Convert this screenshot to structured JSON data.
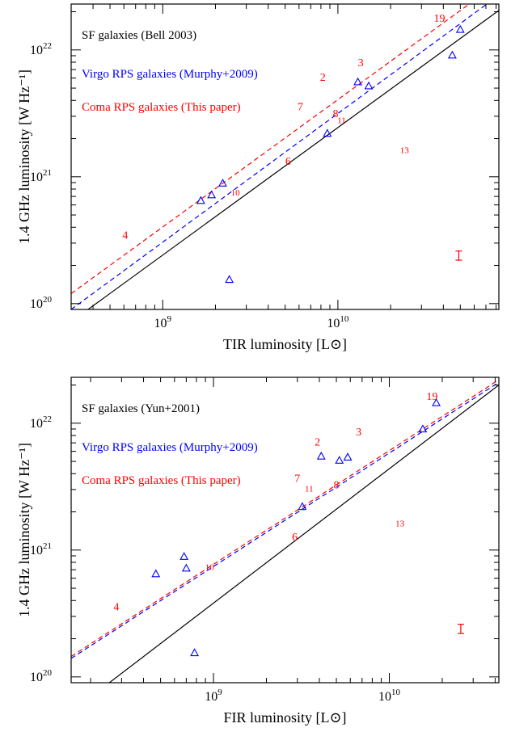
{
  "chart_data": [
    {
      "type": "scatter",
      "xlabel": "TIR luminosity [L⊙]",
      "ylabel": "1.4 GHz luminosity [W Hz⁻¹]",
      "xscale": "log",
      "yscale": "log",
      "xlim": [
        300000000.0,
        83000000000.0
      ],
      "ylim": [
        9e+19,
        2.3e+22
      ],
      "xticks": [
        {
          "v": 1000000000.0,
          "base": "10",
          "exp": "9"
        },
        {
          "v": 10000000000.0,
          "base": "10",
          "exp": "10"
        }
      ],
      "yticks": [
        {
          "v": 1e+20,
          "base": "10",
          "exp": "20"
        },
        {
          "v": 1e+21,
          "base": "10",
          "exp": "21"
        },
        {
          "v": 1e+22,
          "base": "10",
          "exp": "22"
        }
      ],
      "legend": [
        {
          "label": "SF galaxies (Bell 2003)",
          "color": "#000000"
        },
        {
          "label": "Virgo RPS galaxies (Murphy+2009)",
          "color": "#0000ff"
        },
        {
          "label": "Coma RPS galaxies (This paper)",
          "color": "#ff0000"
        }
      ],
      "legend_position": "top-left",
      "relations": [
        {
          "color": "#000000",
          "dash": "solid",
          "x": [
            300000000.0,
            83000000000.0
          ],
          "y": [
            7.2e+19,
            2.05e+22
          ]
        },
        {
          "color": "#0000ff",
          "dash": "dashed",
          "x": [
            300000000.0,
            83000000000.0
          ],
          "y": [
            9e+19,
            2.7e+22
          ]
        },
        {
          "color": "#ff0000",
          "dash": "dashed",
          "x": [
            300000000.0,
            83000000000.0
          ],
          "y": [
            1.2e+20,
            3.4e+22
          ]
        }
      ],
      "virgo_points": {
        "color": "#0000ff",
        "marker": "triangle",
        "x": [
          1650000000.0,
          1900000000.0,
          2200000000.0,
          2400000000.0,
          8700000000.0,
          13000000000.0,
          15000000000.0,
          45000000000.0,
          50000000000.0
        ],
        "y": [
          6.5e+20,
          7.2e+20,
          8.9e+20,
          1.55e+20,
          2.2e+21,
          5.6e+21,
          5.2e+21,
          9.1e+21,
          1.45e+22
        ]
      },
      "coma_points": {
        "color": "#ff0000",
        "items": [
          {
            "label": "19",
            "x": 38000000000.0,
            "y": 1.75e+22,
            "size": "normal"
          },
          {
            "label": "3",
            "x": 13500000000.0,
            "y": 7.8e+21,
            "size": "normal"
          },
          {
            "label": "2",
            "x": 8200000000.0,
            "y": 6e+21,
            "size": "normal"
          },
          {
            "label": "7",
            "x": 6100000000.0,
            "y": 3.5e+21,
            "size": "normal"
          },
          {
            "label": "8",
            "x": 9700000000.0,
            "y": 3.1e+21,
            "size": "normal"
          },
          {
            "label": "11",
            "x": 10500000000.0,
            "y": 2.75e+21,
            "size": "small"
          },
          {
            "label": "13",
            "x": 24000000000.0,
            "y": 1.6e+21,
            "size": "small"
          },
          {
            "label": "6",
            "x": 5200000000.0,
            "y": 1.3e+21,
            "size": "normal"
          },
          {
            "label": "10",
            "x": 2600000000.0,
            "y": 7.4e+20,
            "size": "small"
          },
          {
            "label": "4",
            "x": 610000000.0,
            "y": 3.4e+20,
            "size": "normal"
          }
        ]
      },
      "error_bar": {
        "x": 49000000000.0,
        "y_low": 2.2e+20,
        "y_high": 2.6e+20,
        "color": "#ff0000"
      }
    },
    {
      "type": "scatter",
      "xlabel": "FIR luminosity [L⊙]",
      "ylabel": "1.4 GHz luminosity [W Hz⁻¹]",
      "xscale": "log",
      "yscale": "log",
      "xlim": [
        155000000.0,
        42000000000.0
      ],
      "ylim": [
        9e+19,
        2.3e+22
      ],
      "xticks": [
        {
          "v": 1000000000.0,
          "base": "10",
          "exp": "9"
        },
        {
          "v": 10000000000.0,
          "base": "10",
          "exp": "10"
        }
      ],
      "yticks": [
        {
          "v": 1e+20,
          "base": "10",
          "exp": "20"
        },
        {
          "v": 1e+21,
          "base": "10",
          "exp": "21"
        },
        {
          "v": 1e+22,
          "base": "10",
          "exp": "22"
        }
      ],
      "legend": [
        {
          "label": "SF galaxies (Yun+2001)",
          "color": "#000000"
        },
        {
          "label": "Virgo RPS galaxies (Murphy+2009)",
          "color": "#0000ff"
        },
        {
          "label": "Coma RPS galaxies (This paper)",
          "color": "#ff0000"
        }
      ],
      "legend_position": "top-left",
      "relations": [
        {
          "color": "#000000",
          "dash": "solid",
          "x": [
            155000000.0,
            42000000000.0
          ],
          "y": [
            5.3e+19,
            2e+22
          ]
        },
        {
          "color": "#0000ff",
          "dash": "dashed",
          "x": [
            155000000.0,
            42000000000.0
          ],
          "y": [
            1.4e+20,
            2.1e+22
          ]
        },
        {
          "color": "#ff0000",
          "dash": "dashed",
          "x": [
            155000000.0,
            42000000000.0
          ],
          "y": [
            1.45e+20,
            2.2e+22
          ]
        }
      ],
      "virgo_points": {
        "color": "#0000ff",
        "marker": "triangle",
        "x": [
          470000000.0,
          680000000.0,
          700000000.0,
          780000000.0,
          3200000000.0,
          4100000000.0,
          5200000000.0,
          5800000000.0,
          15500000000.0,
          18500000000.0
        ],
        "y": [
          6.5e+20,
          8.9e+20,
          7.2e+20,
          1.55e+20,
          2.2e+21,
          5.5e+21,
          5.1e+21,
          5.4e+21,
          9e+21,
          1.45e+22
        ]
      },
      "coma_points": {
        "color": "#ff0000",
        "items": [
          {
            "label": "19",
            "x": 17500000000.0,
            "y": 1.6e+22,
            "size": "normal"
          },
          {
            "label": "3",
            "x": 6700000000.0,
            "y": 8.4e+21,
            "size": "normal"
          },
          {
            "label": "2",
            "x": 3900000000.0,
            "y": 7e+21,
            "size": "normal"
          },
          {
            "label": "7",
            "x": 3000000000.0,
            "y": 3.6e+21,
            "size": "normal"
          },
          {
            "label": "8",
            "x": 5000000000.0,
            "y": 3.2e+21,
            "size": "normal"
          },
          {
            "label": "11",
            "x": 3500000000.0,
            "y": 3e+21,
            "size": "small"
          },
          {
            "label": "13",
            "x": 11500000000.0,
            "y": 1.6e+21,
            "size": "small"
          },
          {
            "label": "6",
            "x": 2900000000.0,
            "y": 1.25e+21,
            "size": "normal"
          },
          {
            "label": "10",
            "x": 950000000.0,
            "y": 7.2e+20,
            "size": "small"
          },
          {
            "label": "4",
            "x": 280000000.0,
            "y": 3.5e+20,
            "size": "normal"
          }
        ]
      },
      "error_bar": {
        "x": 25500000000.0,
        "y_low": 2.2e+20,
        "y_high": 2.6e+20,
        "color": "#ff0000"
      }
    }
  ]
}
